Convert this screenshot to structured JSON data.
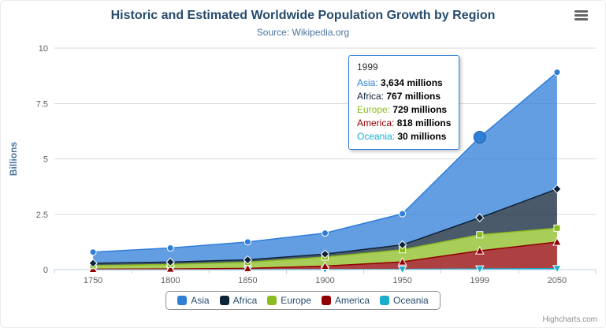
{
  "title": "Historic and Estimated Worldwide Population Growth by Region",
  "subtitle": "Source: Wikipedia.org",
  "credits": "Highcharts.com",
  "yaxis": {
    "title": "Billions",
    "ticks": [
      0,
      2.5,
      5,
      7.5,
      10
    ]
  },
  "chart_data": {
    "type": "area",
    "stacking": "normal",
    "title": "Historic and Estimated Worldwide Population Growth by Region",
    "subtitle": "Source: Wikipedia.org",
    "ylabel": "Billions",
    "ylim": [
      0,
      10
    ],
    "unit": "millions",
    "grid": "horizontal",
    "legend_position": "bottom",
    "categories": [
      "1750",
      "1800",
      "1850",
      "1900",
      "1950",
      "1999",
      "2050"
    ],
    "series": [
      {
        "name": "Asia",
        "color": "#2f7ed8",
        "marker": "circle",
        "values_millions": [
          502,
          635,
          809,
          947,
          1402,
          3634,
          5268
        ]
      },
      {
        "name": "Africa",
        "color": "#0d233a",
        "marker": "diamond",
        "values_millions": [
          106,
          107,
          111,
          133,
          221,
          767,
          1766
        ]
      },
      {
        "name": "Europe",
        "color": "#8bbc21",
        "marker": "square",
        "values_millions": [
          163,
          203,
          276,
          408,
          547,
          729,
          628
        ]
      },
      {
        "name": "America",
        "color": "#910000",
        "marker": "triangle",
        "values_millions": [
          18,
          31,
          54,
          156,
          339,
          818,
          1201
        ]
      },
      {
        "name": "Oceania",
        "color": "#1aadce",
        "marker": "triangle-down",
        "values_millions": [
          2,
          2,
          2,
          6,
          13,
          30,
          46
        ]
      }
    ]
  },
  "tooltip": {
    "header": "1999",
    "hovered_point": {
      "series": "Asia",
      "category": "1999"
    },
    "rows": [
      {
        "name": "Asia",
        "value": "3,634",
        "suffix": "millions"
      },
      {
        "name": "Africa",
        "value": "767",
        "suffix": "millions"
      },
      {
        "name": "Europe",
        "value": "729",
        "suffix": "millions"
      },
      {
        "name": "America",
        "value": "818",
        "suffix": "millions"
      },
      {
        "name": "Oceania",
        "value": "30",
        "suffix": "millions"
      }
    ]
  }
}
